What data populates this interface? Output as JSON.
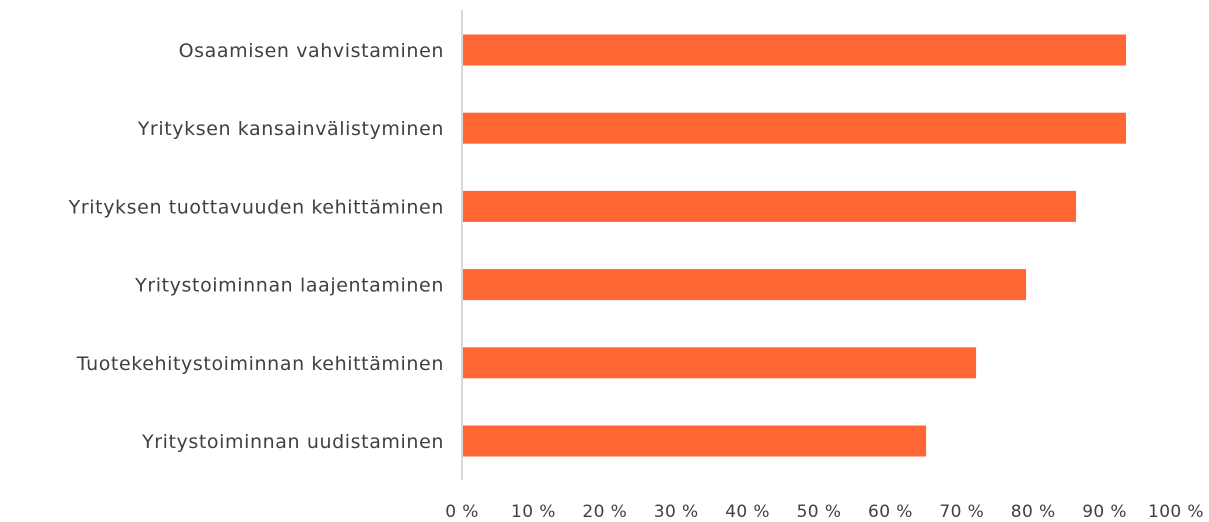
{
  "chart_data": {
    "type": "bar",
    "orientation": "horizontal",
    "categories": [
      "Osaamisen vahvistaminen",
      "Yrityksen kansainvälistyminen",
      "Yrityksen tuottavuuden kehittäminen",
      "Yritystoiminnan laajentaminen",
      "Tuotekehitystoiminnan kehittäminen",
      "Yritystoiminnan uudistaminen"
    ],
    "values": [
      93,
      93,
      86,
      79,
      72,
      65
    ],
    "xlim": [
      0,
      100
    ],
    "xticks": [
      0,
      10,
      20,
      30,
      40,
      50,
      60,
      70,
      80,
      90,
      100
    ],
    "xtick_labels": [
      "0 %",
      "10 %",
      "20 %",
      "30 %",
      "40 %",
      "50 %",
      "60 %",
      "70 %",
      "80 %",
      "90 %",
      "100 %"
    ],
    "bar_color": "#FF6633",
    "axis_color": "#D9D9D9",
    "grid": false,
    "title": "",
    "xlabel": "",
    "ylabel": ""
  }
}
